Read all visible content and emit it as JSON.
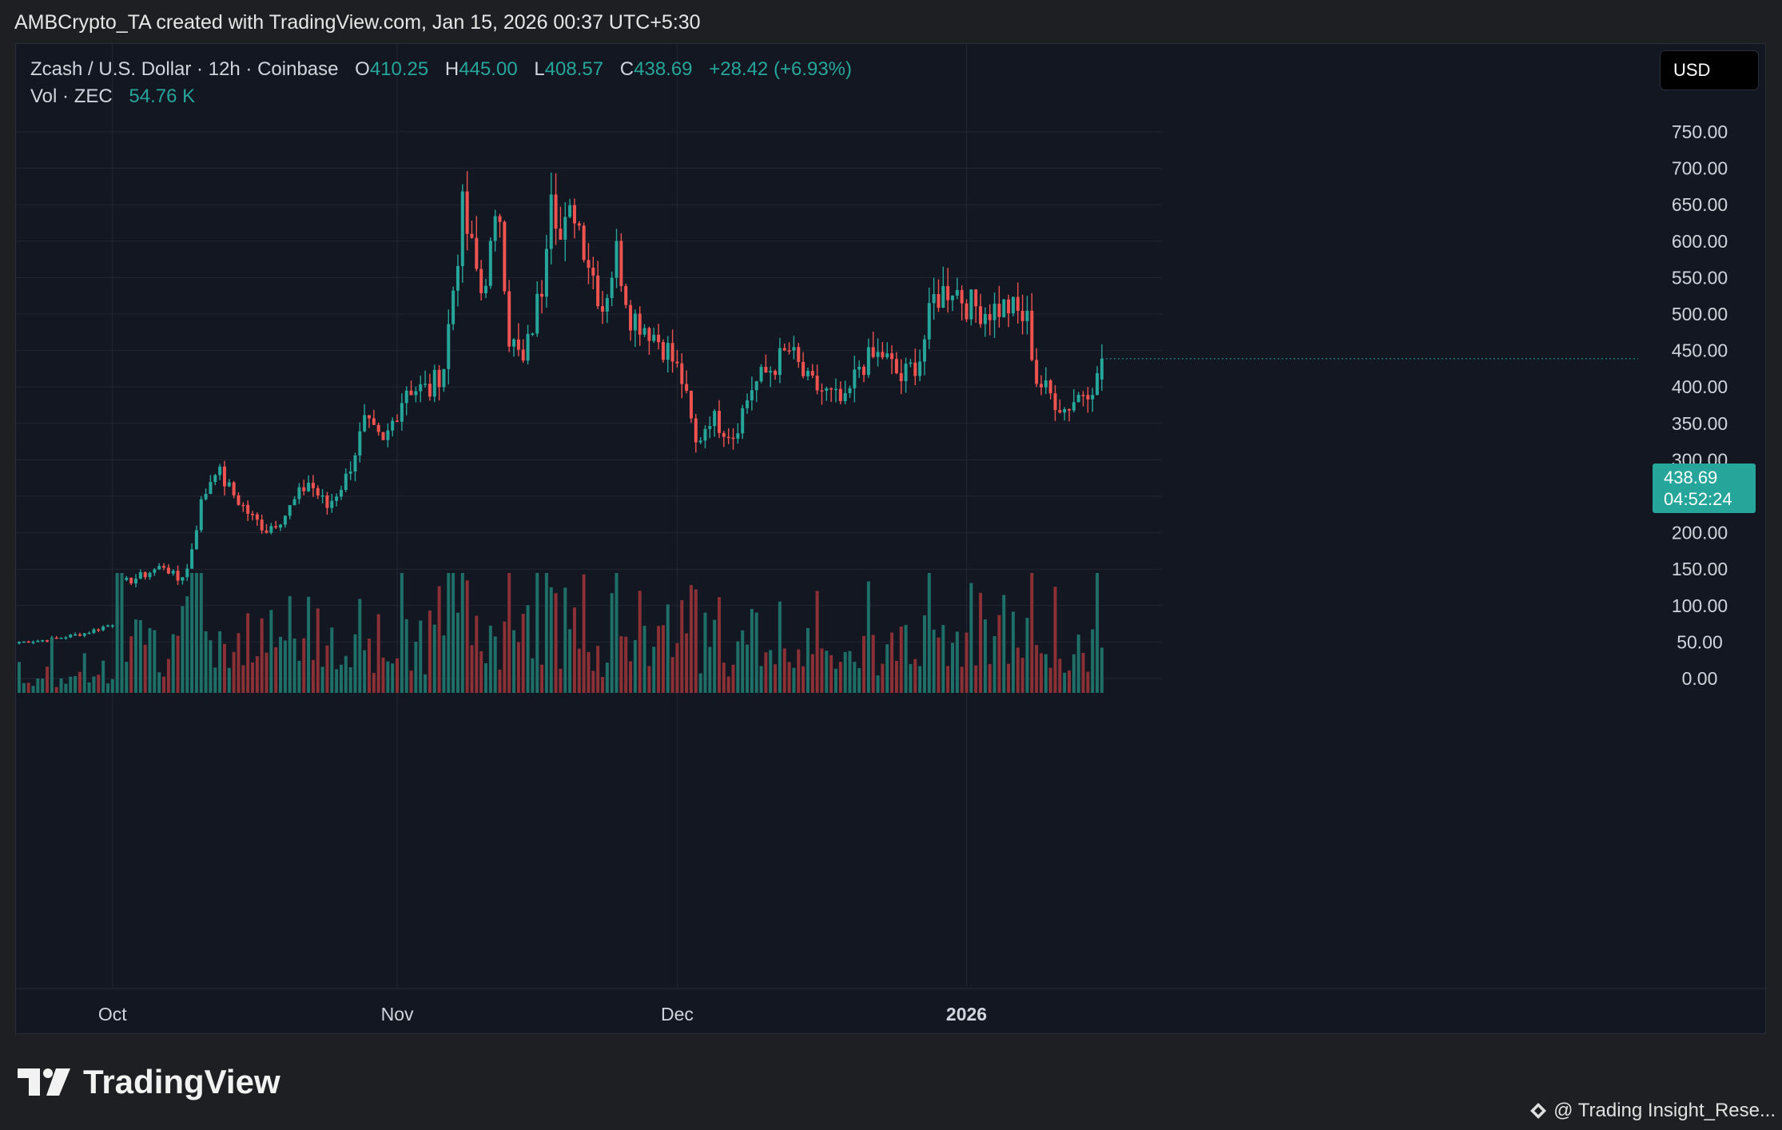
{
  "header": {
    "attribution": "AMBCrypto_TA created with TradingView.com, Jan 15, 2026 00:37 UTC+5:30"
  },
  "legend": {
    "symbol": "Zcash / U.S. Dollar · 12h · Coinbase",
    "open_label": "O",
    "open": "410.25",
    "high_label": "H",
    "high": "445.00",
    "low_label": "L",
    "low": "408.57",
    "close_label": "C",
    "close": "438.69",
    "change": "+28.42 (+6.93%)",
    "volume_label": "Vol · ZEC",
    "volume": "54.76 K"
  },
  "currency_button": "USD",
  "price_tag": {
    "price": "438.69",
    "countdown": "04:52:24"
  },
  "branding": {
    "logo_icon": "tradingview-logo-icon",
    "logo_text": "TradingView",
    "watermark": "@ Trading Insight_Rese..."
  },
  "colors": {
    "up": "#26a69a",
    "down": "#ef5350",
    "volume_up": "#1f6f69",
    "volume_down": "#8b3135",
    "background": "#131722",
    "grid": "#232733"
  },
  "chart_data": {
    "type": "candlestick",
    "interval": "12h",
    "y_ticks": [
      "750.00",
      "700.00",
      "650.00",
      "600.00",
      "550.00",
      "500.00",
      "450.00",
      "400.00",
      "350.00",
      "300.00",
      "250.00",
      "200.00",
      "150.00",
      "100.00",
      "50.00",
      "0.00"
    ],
    "ylim": [
      0,
      750
    ],
    "x_tick_labels": [
      "Oct",
      "Nov",
      "Dec",
      "2026"
    ],
    "x_ticks_at_candle": [
      20,
      81,
      141,
      203
    ],
    "grid": true,
    "anchor_points": [
      [
        0,
        50
      ],
      [
        6,
        53
      ],
      [
        14,
        62
      ],
      [
        20,
        75
      ],
      [
        22,
        130
      ],
      [
        26,
        140
      ],
      [
        31,
        155
      ],
      [
        34,
        135
      ],
      [
        36,
        150
      ],
      [
        39,
        240
      ],
      [
        42,
        290
      ],
      [
        45,
        260
      ],
      [
        50,
        220
      ],
      [
        53,
        205
      ],
      [
        57,
        225
      ],
      [
        62,
        270
      ],
      [
        66,
        235
      ],
      [
        70,
        275
      ],
      [
        74,
        350
      ],
      [
        78,
        320
      ],
      [
        83,
        400
      ],
      [
        88,
        395
      ],
      [
        91,
        430
      ],
      [
        95,
        640
      ],
      [
        99,
        530
      ],
      [
        103,
        640
      ],
      [
        105,
        470
      ],
      [
        108,
        430
      ],
      [
        112,
        540
      ],
      [
        114,
        690
      ],
      [
        116,
        600
      ],
      [
        119,
        645
      ],
      [
        122,
        575
      ],
      [
        125,
        510
      ],
      [
        128,
        585
      ],
      [
        131,
        500
      ],
      [
        135,
        480
      ],
      [
        139,
        450
      ],
      [
        142,
        410
      ],
      [
        145,
        320
      ],
      [
        148,
        360
      ],
      [
        153,
        335
      ],
      [
        157,
        400
      ],
      [
        161,
        425
      ],
      [
        165,
        450
      ],
      [
        169,
        405
      ],
      [
        172,
        395
      ],
      [
        177,
        375
      ],
      [
        180,
        430
      ],
      [
        185,
        445
      ],
      [
        189,
        410
      ],
      [
        193,
        440
      ],
      [
        196,
        520
      ],
      [
        200,
        540
      ],
      [
        203,
        515
      ],
      [
        207,
        505
      ],
      [
        212,
        510
      ],
      [
        216,
        490
      ],
      [
        218,
        410
      ],
      [
        220,
        395
      ],
      [
        224,
        370
      ],
      [
        228,
        395
      ],
      [
        231,
        410
      ],
      [
        232,
        438.69
      ]
    ],
    "volume_ylim": [
      0,
      300000
    ]
  }
}
